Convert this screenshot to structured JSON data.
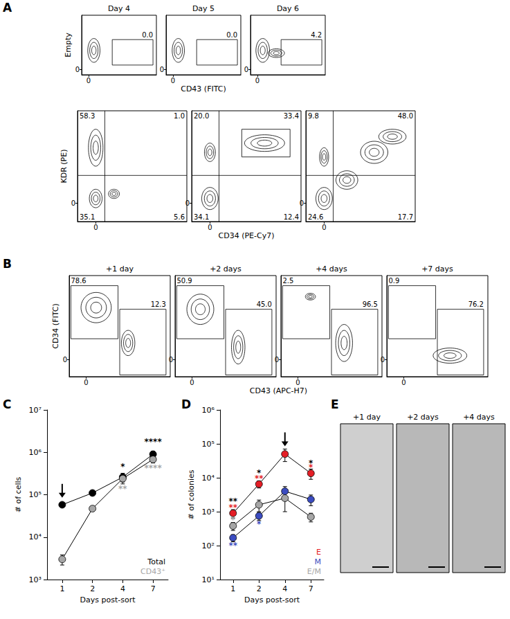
{
  "panel_labels": [
    "A",
    "B",
    "C",
    "D",
    "E"
  ],
  "chart_data": [
    {
      "type": "contour",
      "panel": "A",
      "titles": [
        "Day 4",
        "Day 5",
        "Day 6"
      ],
      "ylabel": "Empty",
      "xlabel": "CD43 (FITC)",
      "xlim": [
        -10,
        100
      ],
      "ylim": [
        -10,
        100
      ],
      "xticks": [
        0
      ],
      "yticks": [
        0
      ],
      "plots": [
        {
          "populations": [
            [
              8,
              35,
              9,
              22
            ]
          ],
          "gates": [
            {
              "x": [
                35,
                95
              ],
              "y": [
                8,
                55
              ],
              "label": "0.0"
            }
          ]
        },
        {
          "populations": [
            [
              8,
              35,
              9,
              22
            ]
          ],
          "gates": [
            {
              "x": [
                35,
                95
              ],
              "y": [
                8,
                55
              ],
              "label": "0.0"
            }
          ]
        },
        {
          "populations": [
            [
              8,
              35,
              10,
              22
            ],
            [
              28,
              30,
              12,
              8
            ]
          ],
          "gates": [
            {
              "x": [
                35,
                95
              ],
              "y": [
                8,
                55
              ],
              "label": "4.2"
            }
          ]
        }
      ]
    },
    {
      "type": "contour",
      "panel": "A",
      "ylabel": "KDR (PE)",
      "xlabel": "CD34 (PE-Cy7)",
      "xlim": [
        -20,
        100
      ],
      "ylim": [
        -20,
        100
      ],
      "xticks": [
        0
      ],
      "yticks": [
        0
      ],
      "plots": [
        {
          "populations": [
            [
              0,
              60,
              8,
              20
            ],
            [
              0,
              5,
              7,
              10
            ],
            [
              20,
              10,
              6,
              5
            ]
          ],
          "quadrant": [
            10,
            30
          ],
          "quadrant_labels": [
            "58.3",
            "1.0",
            "35.1",
            "5.6"
          ]
        },
        {
          "populations": [
            [
              0,
              5,
              9,
              12
            ],
            [
              0,
              55,
              6,
              10
            ],
            [
              60,
              65,
              22,
              9
            ]
          ],
          "quadrant": [
            10,
            30
          ],
          "quadrant_labels": [
            "20.0",
            "33.4",
            "34.1",
            "12.4"
          ],
          "gates": [
            {
              "x": [
                35,
                88
              ],
              "y": [
                50,
                80
              ]
            }
          ]
        },
        {
          "populations": [
            [
              0,
              5,
              9,
              12
            ],
            [
              25,
              25,
              12,
              10
            ],
            [
              55,
              55,
              15,
              12
            ],
            [
              75,
              72,
              15,
              8
            ],
            [
              0,
              50,
              5,
              10
            ]
          ],
          "quadrant": [
            10,
            30
          ],
          "quadrant_labels": [
            "9.8",
            "48.0",
            "24.6",
            "17.7"
          ]
        }
      ]
    },
    {
      "type": "contour",
      "panel": "B",
      "titles": [
        "+1 day",
        "+2 days",
        "+4 days",
        "+7 days"
      ],
      "ylabel": "CD34 (FITC)",
      "xlabel": "CD43 (APC-H7)",
      "xlim": [
        -20,
        100
      ],
      "ylim": [
        -20,
        100
      ],
      "xticks": [
        0
      ],
      "yticks": [
        0
      ],
      "plots": [
        {
          "populations": [
            [
              12,
              62,
              18,
              18
            ],
            [
              50,
              20,
              8,
              15
            ]
          ],
          "gates": [
            {
              "x": [
                -18,
                38
              ],
              "y": [
                25,
                88
              ],
              "label": "78.6"
            },
            {
              "x": [
                40,
                95
              ],
              "y": [
                -18,
                60
              ],
              "label": "12.3"
            }
          ]
        },
        {
          "populations": [
            [
              10,
              60,
              16,
              18
            ],
            [
              55,
              15,
              8,
              20
            ]
          ],
          "gates": [
            {
              "x": [
                -18,
                38
              ],
              "y": [
                25,
                88
              ],
              "label": "50.9"
            },
            {
              "x": [
                40,
                95
              ],
              "y": [
                -18,
                60
              ],
              "label": "45.0"
            }
          ]
        },
        {
          "populations": [
            [
              15,
              75,
              6,
              4
            ],
            [
              55,
              20,
              10,
              22
            ]
          ],
          "gates": [
            {
              "x": [
                -18,
                38
              ],
              "y": [
                25,
                88
              ],
              "label": "2.5"
            },
            {
              "x": [
                40,
                95
              ],
              "y": [
                -18,
                60
              ],
              "label": "96.5"
            }
          ]
        },
        {
          "populations": [
            [
              55,
              5,
              20,
              9
            ]
          ],
          "gates": [
            {
              "x": [
                -18,
                38
              ],
              "y": [
                25,
                88
              ],
              "label": "0.9"
            },
            {
              "x": [
                40,
                95
              ],
              "y": [
                -18,
                60
              ],
              "label": "76.2"
            }
          ]
        }
      ]
    },
    {
      "type": "line",
      "panel": "C",
      "xlabel": "Days post-sort",
      "ylabel": "# of cells",
      "categories": [
        "1",
        "2",
        "4",
        "7"
      ],
      "log": "y",
      "grid": false,
      "marker": "circle",
      "legend": "lower right",
      "ylim": [
        1000,
        10000000
      ],
      "yticks": [
        {
          "value": 1000,
          "label": "10³"
        },
        {
          "value": 10000,
          "label": "10⁴"
        },
        {
          "value": 100000,
          "label": "10⁵"
        },
        {
          "value": 1000000,
          "label": "10⁶"
        },
        {
          "value": 10000000,
          "label": "10⁷"
        }
      ],
      "series": [
        {
          "name": "Total",
          "color": "#000000",
          "values": [
            58000,
            110000,
            260000,
            900000
          ],
          "errors": [
            6000,
            12000,
            60000,
            150000
          ]
        },
        {
          "name": "CD43⁺",
          "color": "#a6a6a6",
          "values": [
            3000,
            47000,
            240000,
            680000
          ],
          "errors": [
            800,
            6000,
            60000,
            120000
          ]
        }
      ],
      "annotations": [
        {
          "x": "4",
          "y": 450000,
          "text": "*",
          "color": "#000000"
        },
        {
          "x": "4",
          "y": 140000,
          "text": "**",
          "color": "#a6a6a6"
        },
        {
          "x": "7",
          "y": 1800000,
          "text": "****",
          "color": "#000000"
        },
        {
          "x": "7",
          "y": 420000,
          "text": "****",
          "color": "#a6a6a6"
        }
      ],
      "arrows": [
        {
          "x": "1",
          "y": 85000
        }
      ]
    },
    {
      "type": "line",
      "panel": "D",
      "xlabel": "Days post-sort",
      "ylabel": "# of colonies",
      "categories": [
        "1",
        "2",
        "4",
        "7"
      ],
      "log": "y",
      "grid": false,
      "marker": "circle",
      "legend": "lower right",
      "ylim": [
        10,
        1000000
      ],
      "yticks": [
        {
          "value": 10,
          "label": "10¹"
        },
        {
          "value": 100,
          "label": "10²"
        },
        {
          "value": 1000,
          "label": "10³"
        },
        {
          "value": 10000,
          "label": "10⁴"
        },
        {
          "value": 100000,
          "label": "10⁵"
        },
        {
          "value": 1000000,
          "label": "10⁶"
        }
      ],
      "series": [
        {
          "name": "E",
          "color": "#e41e26",
          "values": [
            900,
            6500,
            50000,
            13500
          ],
          "errors": [
            250,
            1500,
            20000,
            4500
          ]
        },
        {
          "name": "M",
          "color": "#3b4cc0",
          "values": [
            170,
            750,
            4000,
            2300
          ],
          "errors": [
            40,
            200,
            1500,
            800
          ]
        },
        {
          "name": "E/M",
          "color": "#a6a6a6",
          "values": [
            380,
            1600,
            2500,
            700
          ],
          "errors": [
            100,
            600,
            1500,
            200
          ]
        }
      ],
      "annotations": [
        {
          "x": "1",
          "y": 2000,
          "text": "**",
          "color": "#000000"
        },
        {
          "x": "1",
          "y": 1350,
          "text": "**",
          "color": "#e41e26"
        },
        {
          "x": "1",
          "y": 560,
          "text": "*",
          "color": "#a6a6a6"
        },
        {
          "x": "1",
          "y": 100,
          "text": "**",
          "color": "#3b4cc0"
        },
        {
          "x": "2",
          "y": 14000,
          "text": "*",
          "color": "#000000"
        },
        {
          "x": "2",
          "y": 9500,
          "text": "**",
          "color": "#e41e26"
        },
        {
          "x": "2",
          "y": 430,
          "text": "*",
          "color": "#3b4cc0"
        },
        {
          "x": "7",
          "y": 27000,
          "text": "*",
          "color": "#000000"
        },
        {
          "x": "7",
          "y": 20000,
          "text": "*",
          "color": "#e41e26"
        }
      ],
      "arrows": [
        {
          "x": "4",
          "y": 85000
        }
      ]
    }
  ],
  "images": {
    "panel": "E",
    "titles": [
      "+1 day",
      "+2 days",
      "+4 days"
    ]
  }
}
